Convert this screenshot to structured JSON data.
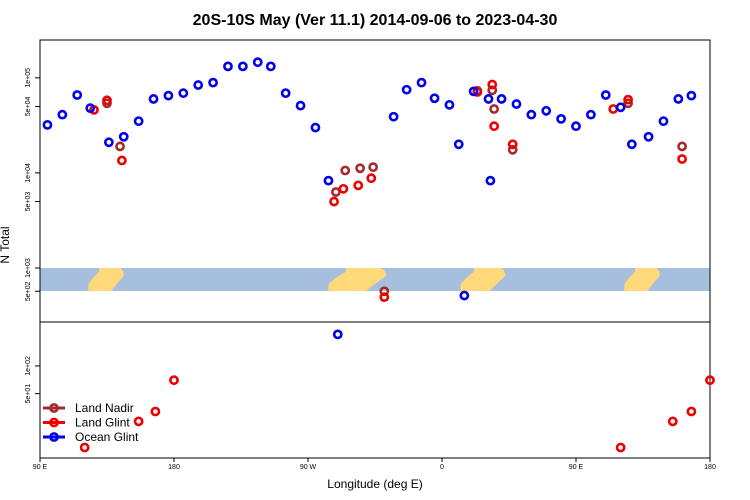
{
  "chart_data": {
    "type": "scatter",
    "title": "20S-10S May (Ver 11.1)   2014-09-06 to 2023-04-30",
    "xlabel": "Longitude (deg E)",
    "ylabel": "N Total",
    "x_axis": {
      "range": [
        0,
        360
      ],
      "note": "continuous longitude from 90 E eastward (0 = 90E, 90 = 180, 180 = 90W, 270 = 0, 360 = 90E)",
      "ticks": [
        {
          "value": 0,
          "label": "90 E"
        },
        {
          "value": 72,
          "label": "180"
        },
        {
          "value": 144,
          "label": "90 W"
        },
        {
          "value": 216,
          "label": "0"
        },
        {
          "value": 288,
          "label": "90 E"
        },
        {
          "value": 360,
          "label": "180"
        }
      ]
    },
    "upper_panel": {
      "scale": "log",
      "ylim": [
        1000,
        250000
      ],
      "ticks": [
        {
          "value": 5000,
          "label": "5e+03"
        },
        {
          "value": 10000,
          "label": "1e+04"
        },
        {
          "value": 50000,
          "label": "5e+04"
        },
        {
          "value": 100000,
          "label": "1e+05"
        }
      ]
    },
    "middle_panel": {
      "scale": "log",
      "ylim": [
        200,
        1000
      ],
      "ticks": [
        {
          "value": 500,
          "label": "5e+02"
        },
        {
          "value": 1000,
          "label": "1e+03"
        }
      ]
    },
    "lower_panel": {
      "scale": "log",
      "ylim": [
        10,
        300
      ],
      "ticks": [
        {
          "value": 50,
          "label": "5e+01"
        },
        {
          "value": 100,
          "label": "1e+02"
        }
      ]
    },
    "series": [
      {
        "name": "Land Nadir",
        "color": "#a52a2a",
        "points": [
          {
            "panel": "upper",
            "x": 36,
            "y": 54000
          },
          {
            "panel": "upper",
            "x": 43,
            "y": 19000
          },
          {
            "panel": "upper",
            "x": 159,
            "y": 6300
          },
          {
            "panel": "upper",
            "x": 164,
            "y": 10600
          },
          {
            "panel": "upper",
            "x": 172,
            "y": 11200
          },
          {
            "panel": "upper",
            "x": 179,
            "y": 11500
          },
          {
            "panel": "middle",
            "x": 185,
            "y": 500
          },
          {
            "panel": "upper",
            "x": 235,
            "y": 73000
          },
          {
            "panel": "upper",
            "x": 243,
            "y": 74000
          },
          {
            "panel": "upper",
            "x": 244,
            "y": 47000
          },
          {
            "panel": "upper",
            "x": 254,
            "y": 17500
          },
          {
            "panel": "upper",
            "x": 316,
            "y": 54000
          },
          {
            "panel": "upper",
            "x": 345,
            "y": 19000
          }
        ]
      },
      {
        "name": "Land Glint",
        "color": "#ee0000",
        "points": [
          {
            "panel": "upper",
            "x": 29,
            "y": 46000
          },
          {
            "panel": "upper",
            "x": 36,
            "y": 58000
          },
          {
            "panel": "upper",
            "x": 44,
            "y": 13500
          },
          {
            "panel": "lower",
            "x": 24,
            "y": 13
          },
          {
            "panel": "lower",
            "x": 53,
            "y": 25
          },
          {
            "panel": "lower",
            "x": 62,
            "y": 32
          },
          {
            "panel": "lower",
            "x": 72,
            "y": 70
          },
          {
            "panel": "upper",
            "x": 158,
            "y": 5000
          },
          {
            "panel": "upper",
            "x": 163,
            "y": 6800
          },
          {
            "panel": "upper",
            "x": 171,
            "y": 7400
          },
          {
            "panel": "upper",
            "x": 178,
            "y": 8800
          },
          {
            "panel": "middle",
            "x": 185,
            "y": 420
          },
          {
            "panel": "upper",
            "x": 235,
            "y": 71000
          },
          {
            "panel": "upper",
            "x": 243,
            "y": 85000
          },
          {
            "panel": "upper",
            "x": 244,
            "y": 31000
          },
          {
            "panel": "upper",
            "x": 254,
            "y": 20000
          },
          {
            "panel": "lower",
            "x": 312,
            "y": 13
          },
          {
            "panel": "upper",
            "x": 308,
            "y": 47000
          },
          {
            "panel": "upper",
            "x": 316,
            "y": 59000
          },
          {
            "panel": "upper",
            "x": 345,
            "y": 14000
          },
          {
            "panel": "lower",
            "x": 340,
            "y": 25
          },
          {
            "panel": "lower",
            "x": 350,
            "y": 32
          },
          {
            "panel": "lower",
            "x": 360,
            "y": 70
          }
        ]
      },
      {
        "name": "Ocean Glint",
        "color": "#0000ee",
        "points": [
          {
            "panel": "upper",
            "x": 4,
            "y": 32000
          },
          {
            "panel": "upper",
            "x": 12,
            "y": 41000
          },
          {
            "panel": "upper",
            "x": 20,
            "y": 66000
          },
          {
            "panel": "upper",
            "x": 27,
            "y": 48000
          },
          {
            "panel": "upper",
            "x": 37,
            "y": 21000
          },
          {
            "panel": "upper",
            "x": 45,
            "y": 24000
          },
          {
            "panel": "upper",
            "x": 53,
            "y": 35000
          },
          {
            "panel": "upper",
            "x": 61,
            "y": 60000
          },
          {
            "panel": "upper",
            "x": 69,
            "y": 65000
          },
          {
            "panel": "upper",
            "x": 77,
            "y": 69000
          },
          {
            "panel": "upper",
            "x": 85,
            "y": 84000
          },
          {
            "panel": "upper",
            "x": 93,
            "y": 89000
          },
          {
            "panel": "upper",
            "x": 101,
            "y": 132000
          },
          {
            "panel": "upper",
            "x": 109,
            "y": 132000
          },
          {
            "panel": "upper",
            "x": 117,
            "y": 146000
          },
          {
            "panel": "upper",
            "x": 124,
            "y": 132000
          },
          {
            "panel": "upper",
            "x": 132,
            "y": 69000
          },
          {
            "panel": "upper",
            "x": 140,
            "y": 51000
          },
          {
            "panel": "upper",
            "x": 148,
            "y": 30000
          },
          {
            "panel": "upper",
            "x": 155,
            "y": 8300
          },
          {
            "panel": "lower",
            "x": 160,
            "y": 220
          },
          {
            "panel": "upper",
            "x": 190,
            "y": 39000
          },
          {
            "panel": "upper",
            "x": 197,
            "y": 75000
          },
          {
            "panel": "upper",
            "x": 205,
            "y": 89000
          },
          {
            "panel": "upper",
            "x": 212,
            "y": 61000
          },
          {
            "panel": "upper",
            "x": 220,
            "y": 52000
          },
          {
            "panel": "upper",
            "x": 225,
            "y": 20000
          },
          {
            "panel": "middle",
            "x": 228,
            "y": 440
          },
          {
            "panel": "upper",
            "x": 233,
            "y": 72000
          },
          {
            "panel": "upper",
            "x": 241,
            "y": 60000
          },
          {
            "panel": "upper",
            "x": 242,
            "y": 8300
          },
          {
            "panel": "upper",
            "x": 248,
            "y": 60000
          },
          {
            "panel": "upper",
            "x": 256,
            "y": 53000
          },
          {
            "panel": "upper",
            "x": 264,
            "y": 41000
          },
          {
            "panel": "upper",
            "x": 272,
            "y": 45000
          },
          {
            "panel": "upper",
            "x": 280,
            "y": 37000
          },
          {
            "panel": "upper",
            "x": 288,
            "y": 31000
          },
          {
            "panel": "upper",
            "x": 296,
            "y": 41000
          },
          {
            "panel": "upper",
            "x": 304,
            "y": 66000
          },
          {
            "panel": "upper",
            "x": 312,
            "y": 49000
          },
          {
            "panel": "upper",
            "x": 318,
            "y": 20000
          },
          {
            "panel": "upper",
            "x": 327,
            "y": 24000
          },
          {
            "panel": "upper",
            "x": 335,
            "y": 35000
          },
          {
            "panel": "upper",
            "x": 343,
            "y": 60000
          },
          {
            "panel": "upper",
            "x": 350,
            "y": 65000
          }
        ]
      }
    ],
    "legend": {
      "position": "bottom-left",
      "entries": [
        {
          "label": "Land Nadir",
          "color": "#a52a2a"
        },
        {
          "label": "Land Glint",
          "color": "#ee0000"
        },
        {
          "label": "Ocean Glint",
          "color": "#0000ee"
        }
      ]
    },
    "map_strip": {
      "ocean_color": "#a7bfdf",
      "land_color": "#ffd97a",
      "land_segments": [
        {
          "from": 155,
          "to": 186,
          "name": "South America"
        },
        {
          "from": 226,
          "to": 250,
          "name": "Africa"
        },
        {
          "from": 26,
          "to": 45,
          "name": "Australia"
        },
        {
          "from": 314,
          "to": 333,
          "name": "Australia"
        }
      ]
    }
  }
}
